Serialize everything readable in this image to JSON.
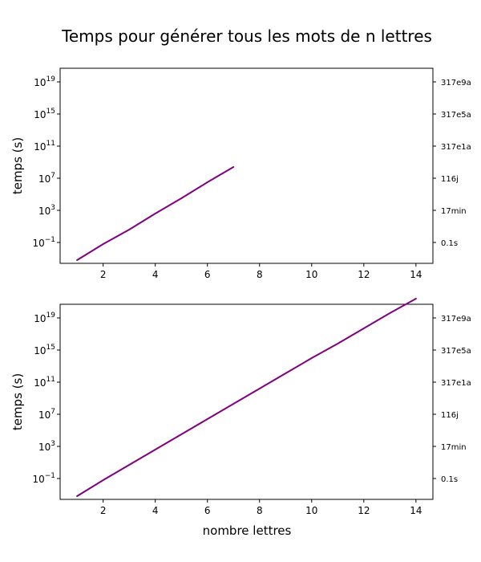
{
  "chart_data": {
    "type": "line",
    "title": "Temps pour générer tous les mots de n lettres",
    "xlabel": "nombre lettres",
    "ylabel": "temps (s)",
    "xlim": [
      0.35,
      14.65
    ],
    "x_ticks": [
      2,
      4,
      6,
      8,
      10,
      12,
      14
    ],
    "y_scale": "log",
    "y_ticks": [
      {
        "base": "10",
        "exp": "−1",
        "value": 0.1
      },
      {
        "base": "10",
        "exp": "3",
        "value": 1000
      },
      {
        "base": "10",
        "exp": "7",
        "value": 10000000
      },
      {
        "base": "10",
        "exp": "11",
        "value": 100000000000
      },
      {
        "base": "10",
        "exp": "15",
        "value": 1000000000000000.0
      },
      {
        "base": "10",
        "exp": "19",
        "value": 1e+19
      }
    ],
    "right_ticks": [
      "0.1s",
      "17min",
      "116j",
      "317e1a",
      "317e5a",
      "317e9a"
    ],
    "line_color": "#800080",
    "panels": [
      {
        "ylim_log10": [
          -3.6,
          20.7
        ],
        "series": [
          {
            "x": [
              1,
              2,
              3,
              4,
              5,
              6,
              7
            ],
            "log10_y": [
              -3.2,
              -1.2,
              0.6,
              2.6,
              4.5,
              6.5,
              8.4
            ]
          }
        ]
      },
      {
        "ylim_log10": [
          -3.6,
          20.7
        ],
        "series": [
          {
            "x": [
              1,
              2,
              3,
              4,
              5,
              6,
              7,
              8,
              9,
              10,
              11,
              12,
              13,
              14
            ],
            "log10_y": [
              -3.2,
              -1.2,
              0.7,
              2.6,
              4.5,
              6.4,
              8.3,
              10.2,
              12.1,
              14.0,
              15.8,
              17.7,
              19.6,
              21.4
            ]
          }
        ]
      }
    ]
  }
}
